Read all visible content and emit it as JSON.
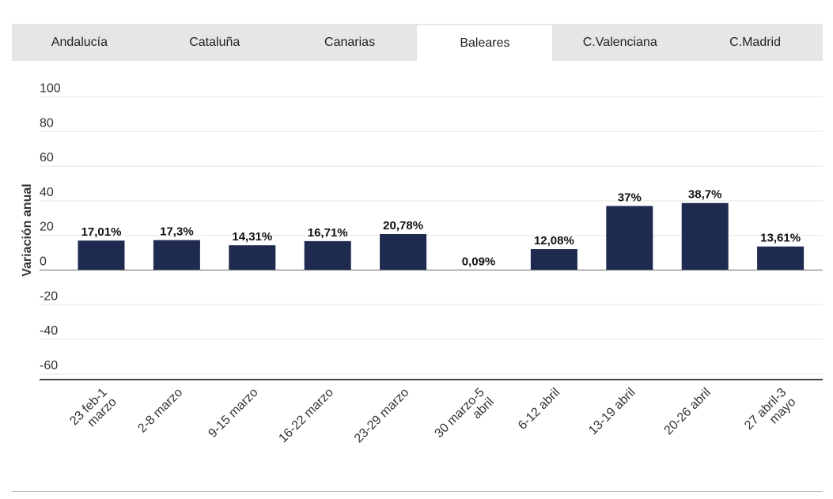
{
  "tabs": [
    {
      "label": "Andalucía",
      "active": false
    },
    {
      "label": "Cataluña",
      "active": false
    },
    {
      "label": "Canarias",
      "active": false
    },
    {
      "label": "Baleares",
      "active": true
    },
    {
      "label": "C.Valenciana",
      "active": false
    },
    {
      "label": "C.Madrid",
      "active": false
    }
  ],
  "chart_data": {
    "type": "bar",
    "title": "",
    "xlabel": "",
    "ylabel": "Variación anual",
    "ylim": [
      -60,
      100
    ],
    "yticks": [
      100,
      80,
      60,
      40,
      20,
      0,
      -20,
      -40,
      -60
    ],
    "grid": true,
    "categories": [
      [
        "23 feb-1",
        "marzo"
      ],
      [
        "2-8 marzo"
      ],
      [
        "9-15 marzo"
      ],
      [
        "16-22 marzo"
      ],
      [
        "23-29 marzo"
      ],
      [
        "30 marzo-5",
        "abril"
      ],
      [
        "6-12 abril"
      ],
      [
        "13-19 abril"
      ],
      [
        "20-26 abril"
      ],
      [
        "27 abril-3",
        "mayo"
      ]
    ],
    "values": [
      17.01,
      17.3,
      14.31,
      16.71,
      20.78,
      0.09,
      12.08,
      37,
      38.7,
      13.61
    ],
    "data_labels": [
      "17,01%",
      "17,3%",
      "14,31%",
      "16,71%",
      "20,78%",
      "0,09%",
      "12,08%",
      "37%",
      "38,7%",
      "13,61%"
    ],
    "bar_color": "#1f2a50"
  }
}
